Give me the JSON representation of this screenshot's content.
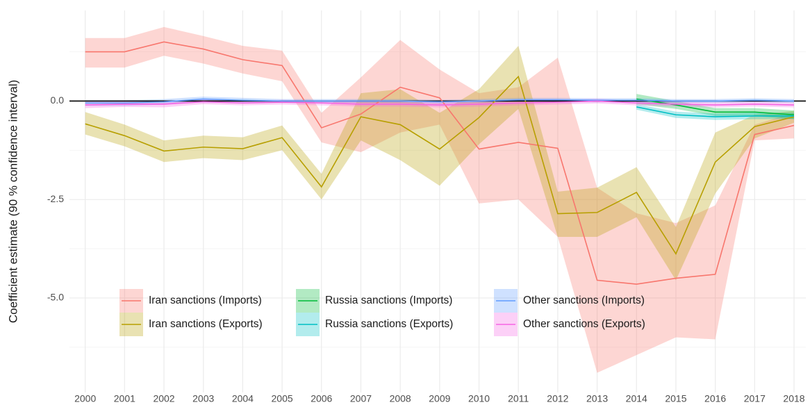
{
  "chart_data": {
    "type": "line",
    "y_label": "Coefficient estimate (90 % confidence interval)",
    "x": [
      2000,
      2001,
      2002,
      2003,
      2004,
      2005,
      2006,
      2007,
      2008,
      2009,
      2010,
      2011,
      2012,
      2013,
      2014,
      2015,
      2016,
      2017,
      2018
    ],
    "xlim": [
      1999.6,
      2018.3
    ],
    "ylim": [
      -7.4,
      2.3
    ],
    "yticks": [
      {
        "value": 0,
        "label": "0.0"
      },
      -2.5,
      {
        "value": -5,
        "label": "-5.0"
      }
    ],
    "minor_yticks": [
      1.25,
      -1.25,
      -3.75,
      -6.25
    ],
    "hline": 0,
    "grid": true,
    "legend": "bottom-left",
    "series": [
      {
        "name": "Iran sanctions (Imports)",
        "color": "#F8766D",
        "values": [
          1.25,
          1.25,
          1.5,
          1.32,
          1.05,
          0.9,
          -0.68,
          -0.33,
          0.35,
          0.08,
          -1.22,
          -1.05,
          -1.2,
          -4.55,
          -4.65,
          -4.5,
          -4.4,
          -0.85,
          -0.62
        ],
        "lower": [
          0.85,
          0.85,
          1.15,
          0.95,
          0.7,
          0.5,
          -1.05,
          -1.3,
          -0.8,
          -0.6,
          -2.6,
          -2.5,
          -3.45,
          -6.9,
          -6.45,
          -6.0,
          -6.05,
          -1.0,
          -0.95
        ],
        "upper": [
          1.6,
          1.6,
          1.88,
          1.65,
          1.4,
          1.28,
          -0.3,
          0.6,
          1.55,
          0.8,
          0.2,
          0.35,
          1.1,
          -2.2,
          -2.85,
          -3.1,
          -2.65,
          -0.6,
          -0.3
        ]
      },
      {
        "name": "Iran sanctions (Exports)",
        "color": "#B79F00",
        "values": [
          -0.58,
          -0.88,
          -1.27,
          -1.17,
          -1.21,
          -0.93,
          -2.18,
          -0.4,
          -0.6,
          -1.22,
          -0.42,
          0.62,
          -2.86,
          -2.83,
          -2.32,
          -3.88,
          -1.55,
          -0.65,
          -0.4
        ],
        "lower": [
          -0.85,
          -1.15,
          -1.55,
          -1.45,
          -1.5,
          -1.25,
          -2.5,
          -1.0,
          -1.5,
          -2.15,
          -1.1,
          -0.2,
          -3.45,
          -3.45,
          -2.95,
          -4.55,
          -2.35,
          -0.95,
          -0.55
        ],
        "upper": [
          -0.28,
          -0.6,
          -1.0,
          -0.88,
          -0.92,
          -0.62,
          -1.85,
          0.2,
          0.3,
          -0.3,
          0.3,
          1.4,
          -2.3,
          -2.2,
          -1.68,
          -3.2,
          -0.8,
          -0.35,
          -0.25
        ]
      },
      {
        "name": "Russia sanctions (Imports)",
        "color": "#00BA38",
        "values": [
          null,
          null,
          null,
          null,
          null,
          null,
          null,
          null,
          null,
          null,
          null,
          null,
          null,
          null,
          0.05,
          -0.1,
          -0.28,
          -0.28,
          -0.35
        ],
        "lower": [
          null,
          null,
          null,
          null,
          null,
          null,
          null,
          null,
          null,
          null,
          null,
          null,
          null,
          null,
          -0.08,
          -0.2,
          -0.38,
          -0.38,
          -0.46
        ],
        "upper": [
          null,
          null,
          null,
          null,
          null,
          null,
          null,
          null,
          null,
          null,
          null,
          null,
          null,
          null,
          0.18,
          0.0,
          -0.18,
          -0.18,
          -0.24
        ]
      },
      {
        "name": "Russia sanctions (Exports)",
        "color": "#00BFC4",
        "values": [
          null,
          null,
          null,
          null,
          null,
          null,
          null,
          null,
          null,
          null,
          null,
          null,
          null,
          null,
          -0.15,
          -0.35,
          -0.4,
          -0.38,
          -0.38
        ],
        "lower": [
          null,
          null,
          null,
          null,
          null,
          null,
          null,
          null,
          null,
          null,
          null,
          null,
          null,
          null,
          -0.22,
          -0.43,
          -0.48,
          -0.46,
          -0.46
        ],
        "upper": [
          null,
          null,
          null,
          null,
          null,
          null,
          null,
          null,
          null,
          null,
          null,
          null,
          null,
          null,
          -0.08,
          -0.27,
          -0.32,
          -0.3,
          -0.3
        ]
      },
      {
        "name": "Other sanctions (Imports)",
        "color": "#619CFF",
        "values": [
          -0.05,
          -0.05,
          -0.02,
          0.05,
          0.02,
          0.0,
          0.0,
          0.0,
          0.0,
          -0.02,
          0.0,
          0.03,
          0.03,
          0.02,
          0.02,
          0.0,
          0.0,
          0.02,
          0.0
        ],
        "lower": [
          -0.12,
          -0.12,
          -0.09,
          -0.01,
          -0.04,
          -0.05,
          -0.05,
          -0.05,
          -0.05,
          -0.07,
          -0.05,
          -0.02,
          -0.02,
          -0.03,
          -0.03,
          -0.05,
          -0.05,
          -0.03,
          -0.05
        ],
        "upper": [
          0.02,
          0.02,
          0.05,
          0.11,
          0.08,
          0.05,
          0.05,
          0.05,
          0.05,
          0.03,
          0.05,
          0.08,
          0.08,
          0.07,
          0.07,
          0.05,
          0.05,
          0.07,
          0.05
        ]
      },
      {
        "name": "Other sanctions (Exports)",
        "color": "#F564E3",
        "values": [
          -0.1,
          -0.08,
          -0.08,
          -0.02,
          -0.05,
          -0.03,
          -0.05,
          -0.08,
          -0.08,
          -0.1,
          -0.08,
          -0.05,
          -0.03,
          0.0,
          -0.05,
          -0.08,
          -0.1,
          -0.08,
          -0.1
        ],
        "lower": [
          -0.18,
          -0.15,
          -0.16,
          -0.08,
          -0.11,
          -0.09,
          -0.11,
          -0.14,
          -0.14,
          -0.16,
          -0.14,
          -0.11,
          -0.09,
          -0.06,
          -0.11,
          -0.14,
          -0.16,
          -0.14,
          -0.16
        ],
        "upper": [
          -0.02,
          -0.01,
          0.0,
          0.04,
          0.01,
          0.03,
          0.01,
          -0.02,
          -0.02,
          -0.04,
          -0.02,
          0.01,
          0.03,
          0.06,
          0.01,
          -0.02,
          -0.04,
          -0.02,
          -0.04
        ]
      }
    ]
  }
}
